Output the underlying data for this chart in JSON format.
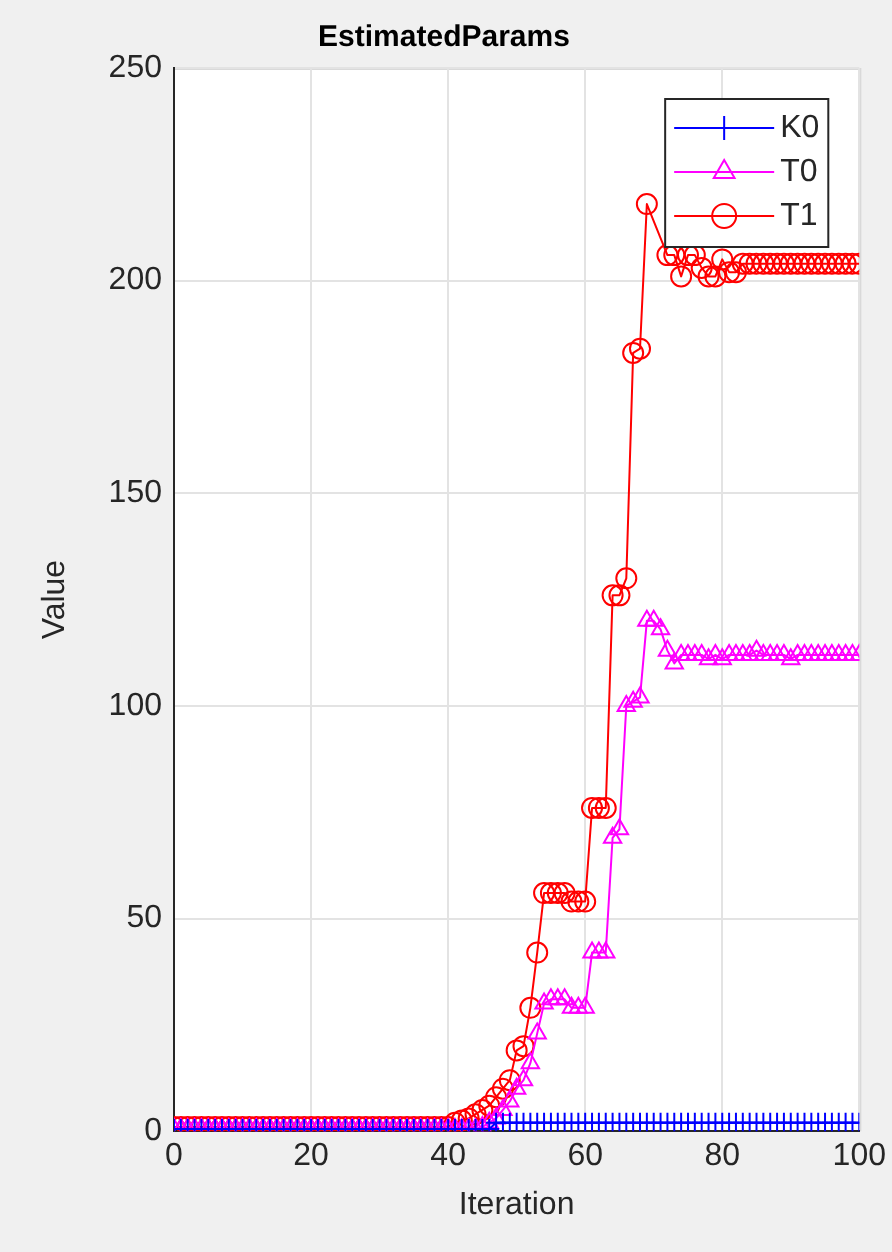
{
  "chart_data": {
    "type": "line",
    "title": "EstimatedParams",
    "xlabel": "Iteration",
    "ylabel": "Value",
    "x": [
      0,
      1,
      2,
      3,
      4,
      5,
      6,
      7,
      8,
      9,
      10,
      11,
      12,
      13,
      14,
      15,
      16,
      17,
      18,
      19,
      20,
      21,
      22,
      23,
      24,
      25,
      26,
      27,
      28,
      29,
      30,
      31,
      32,
      33,
      34,
      35,
      36,
      37,
      38,
      39,
      40,
      41,
      42,
      43,
      44,
      45,
      46,
      47,
      48,
      49,
      50,
      51,
      52,
      53,
      54,
      55,
      56,
      57,
      58,
      59,
      60,
      61,
      62,
      63,
      64,
      65,
      66,
      67,
      68,
      69,
      70,
      71,
      72,
      73,
      74,
      75,
      76,
      77,
      78,
      79,
      80,
      81,
      82,
      83,
      84,
      85,
      86,
      87,
      88,
      89,
      90,
      91,
      92,
      93,
      94,
      95,
      96,
      97,
      98,
      99,
      100
    ],
    "xlim": [
      0,
      100
    ],
    "xticks": [
      0,
      20,
      40,
      60,
      80,
      100
    ],
    "ylim": [
      0,
      250
    ],
    "yticks": [
      0,
      50,
      100,
      150,
      200,
      250
    ],
    "grid": true,
    "legend": "top right",
    "series": [
      {
        "name": "K0",
        "color": "#0000ff",
        "marker": "cross",
        "values": [
          0.5,
          0.5,
          0.5,
          0.5,
          0.5,
          0.5,
          0.5,
          0.5,
          0.5,
          0.5,
          0.5,
          0.5,
          0.5,
          0.5,
          0.5,
          0.5,
          0.5,
          0.5,
          0.5,
          0.5,
          0.5,
          0.5,
          0.5,
          0.5,
          0.5,
          0.5,
          0.5,
          0.5,
          0.5,
          0.5,
          0.5,
          0.5,
          0.5,
          0.5,
          0.5,
          0.5,
          0.5,
          0.5,
          0.5,
          0.5,
          0.5,
          0.5,
          0.5,
          0.5,
          0.5,
          0.5,
          0.5,
          2,
          2,
          2,
          2,
          2,
          2,
          2,
          2,
          2,
          2,
          2,
          2,
          2,
          2,
          2,
          2,
          2,
          2,
          2,
          2,
          2,
          2,
          2,
          2,
          2,
          2,
          2,
          2,
          2,
          2,
          2,
          2,
          2,
          2,
          2,
          2,
          2,
          2,
          2,
          2,
          2,
          2,
          2,
          2,
          2,
          2,
          2,
          2,
          2,
          2,
          2,
          2,
          2,
          2
        ]
      },
      {
        "name": "T0",
        "color": "#ff00ff",
        "marker": "triangle",
        "values": [
          0.5,
          0.5,
          0.5,
          0.5,
          0.5,
          0.5,
          0.5,
          0.5,
          0.5,
          0.5,
          0.5,
          0.5,
          0.5,
          0.5,
          0.5,
          0.5,
          0.5,
          0.5,
          0.5,
          0.5,
          0.5,
          0.5,
          0.5,
          0.5,
          0.5,
          0.5,
          0.5,
          0.5,
          0.5,
          0.5,
          0.5,
          0.5,
          0.5,
          0.5,
          0.5,
          0.5,
          0.5,
          0.5,
          0.5,
          0.5,
          0.5,
          0.5,
          0.5,
          0.5,
          0.5,
          1,
          2,
          3,
          5,
          7,
          10,
          12,
          16,
          23,
          30,
          31,
          31,
          31,
          29,
          29,
          29,
          42,
          42,
          42,
          69,
          71,
          100,
          101,
          102,
          120,
          120,
          118,
          113,
          110,
          112,
          112,
          112,
          112,
          111,
          112,
          111,
          112,
          112,
          112,
          112,
          113,
          112,
          112,
          112,
          112,
          111,
          112,
          112,
          112,
          112,
          112,
          112,
          112,
          112,
          112,
          112
        ]
      },
      {
        "name": "T1",
        "color": "#ff0000",
        "marker": "circle",
        "values": [
          1,
          1,
          1,
          1,
          1,
          1,
          1,
          1,
          1,
          1,
          1,
          1,
          1,
          1,
          1,
          1,
          1,
          1,
          1,
          1,
          1,
          1,
          1,
          1,
          1,
          1,
          1,
          1,
          1,
          1,
          1,
          1,
          1,
          1,
          1,
          1,
          1,
          1,
          1,
          1,
          1,
          2,
          2.5,
          3,
          4,
          5,
          6,
          8,
          10,
          12,
          19,
          20,
          29,
          42,
          56,
          56,
          56,
          56,
          54,
          54,
          54,
          76,
          76,
          76,
          126,
          126,
          130,
          183,
          184,
          218,
          null,
          null,
          206,
          206,
          201,
          206,
          206,
          203,
          201,
          201,
          205,
          202,
          202,
          204,
          204,
          204,
          204,
          204,
          204,
          204,
          204,
          204,
          204,
          204,
          204,
          204,
          204,
          204,
          204,
          204,
          204
        ]
      }
    ]
  }
}
